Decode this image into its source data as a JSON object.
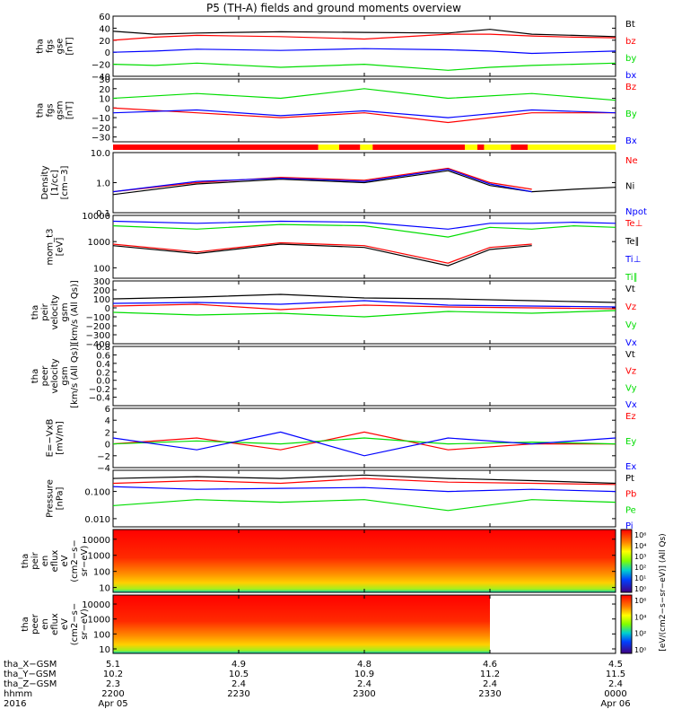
{
  "title": "P5 (TH-A) fields and ground moments overview",
  "colors": {
    "black": "#000000",
    "red": "#ff0000",
    "green": "#00dd00",
    "blue": "#0000ff",
    "yellow": "#ffff00"
  },
  "chart_data": [
    {
      "type": "line",
      "id": "p1",
      "ylabel": [
        "tha",
        "fgs",
        "gse",
        "[nT]"
      ],
      "ylim": [
        -40,
        60
      ],
      "yticks": [
        {
          "v": 60,
          "t": "60"
        },
        {
          "v": 40,
          "t": "40"
        },
        {
          "v": 20,
          "t": "20"
        },
        {
          "v": 0,
          "t": "0"
        },
        {
          "v": -20,
          "t": "−20"
        },
        {
          "v": -40,
          "t": "−40"
        }
      ],
      "series": [
        {
          "name": "Bt",
          "color": "#000000",
          "x": [
            0,
            5,
            10,
            20,
            30,
            40,
            45,
            50,
            55,
            60
          ],
          "y": [
            35,
            30,
            32,
            34,
            33,
            32,
            38,
            30,
            28,
            26
          ]
        },
        {
          "name": "bz",
          "color": "#ff0000",
          "x": [
            0,
            5,
            10,
            20,
            30,
            40,
            45,
            50,
            55,
            60
          ],
          "y": [
            20,
            25,
            28,
            26,
            22,
            30,
            30,
            27,
            25,
            24
          ]
        },
        {
          "name": "by",
          "color": "#00dd00",
          "x": [
            0,
            5,
            10,
            20,
            30,
            40,
            45,
            50,
            55,
            60
          ],
          "y": [
            -20,
            -22,
            -18,
            -25,
            -20,
            -30,
            -25,
            -22,
            -20,
            -18
          ]
        },
        {
          "name": "bx",
          "color": "#0000ff",
          "x": [
            0,
            5,
            10,
            20,
            30,
            40,
            45,
            50,
            55,
            60
          ],
          "y": [
            0,
            2,
            5,
            3,
            6,
            4,
            2,
            -2,
            0,
            2
          ]
        }
      ]
    },
    {
      "type": "line",
      "id": "p2",
      "ylabel": [
        "tha",
        "fgs",
        "gsm",
        "[nT]"
      ],
      "ylim": [
        -35,
        30
      ],
      "yticks": [
        {
          "v": 30,
          "t": "30"
        },
        {
          "v": 20,
          "t": "20"
        },
        {
          "v": 10,
          "t": "10"
        },
        {
          "v": 0,
          "t": "0"
        },
        {
          "v": -10,
          "t": "−10"
        },
        {
          "v": -20,
          "t": "−20"
        },
        {
          "v": -30,
          "t": "−30"
        }
      ],
      "series": [
        {
          "name": "Bz",
          "color": "#ff0000",
          "x": [
            0,
            10,
            20,
            30,
            40,
            50,
            60
          ],
          "y": [
            0,
            -5,
            -10,
            -5,
            -15,
            -5,
            -5
          ]
        },
        {
          "name": "By",
          "color": "#00dd00",
          "x": [
            0,
            10,
            20,
            30,
            40,
            50,
            60
          ],
          "y": [
            10,
            15,
            10,
            20,
            10,
            15,
            8
          ]
        },
        {
          "name": "Bx",
          "color": "#0000ff",
          "x": [
            0,
            10,
            20,
            30,
            40,
            50,
            60
          ],
          "y": [
            -5,
            -2,
            -8,
            -3,
            -10,
            -2,
            -5
          ]
        }
      ]
    },
    {
      "type": "line",
      "id": "p3",
      "ylabel": [
        "Density",
        "[1/cc]",
        "[cm−3]"
      ],
      "ylog": true,
      "ylim": [
        0.1,
        10
      ],
      "yticks": [
        {
          "v": 10,
          "t": "10.0"
        },
        {
          "v": 1,
          "t": "1.0"
        },
        {
          "v": 0.1,
          "t": "0.1"
        }
      ],
      "series": [
        {
          "name": "Ne",
          "color": "#ff0000",
          "x": [
            0,
            10,
            20,
            30,
            40,
            45,
            50
          ],
          "y": [
            0.5,
            1.0,
            1.5,
            1.2,
            3.0,
            1.0,
            0.6
          ]
        },
        {
          "name": "Ni",
          "color": "#000000",
          "x": [
            0,
            10,
            20,
            30,
            40,
            45,
            50,
            55,
            60
          ],
          "y": [
            0.4,
            0.9,
            1.3,
            1.0,
            2.5,
            0.8,
            0.5,
            0.6,
            0.7
          ]
        },
        {
          "name": "Npot",
          "color": "#0000ff",
          "x": [
            0,
            10,
            20,
            30,
            40,
            45,
            50
          ],
          "y": [
            0.5,
            1.1,
            1.4,
            1.1,
            2.8,
            0.9,
            0.5
          ]
        }
      ]
    },
    {
      "type": "line",
      "id": "p4",
      "ylabel": [
        "mom_t3",
        "[eV]"
      ],
      "ylog": true,
      "ylim": [
        40,
        10000
      ],
      "yticks": [
        {
          "v": 10000,
          "t": "10000"
        },
        {
          "v": 1000,
          "t": "1000"
        },
        {
          "v": 100,
          "t": "100"
        }
      ],
      "series": [
        {
          "name": "Te⊥",
          "color": "#ff0000",
          "x": [
            0,
            10,
            20,
            30,
            40,
            45,
            50
          ],
          "y": [
            800,
            400,
            900,
            700,
            150,
            600,
            800
          ]
        },
        {
          "name": "Te∥",
          "color": "#000000",
          "x": [
            0,
            10,
            20,
            30,
            40,
            45,
            50
          ],
          "y": [
            700,
            350,
            800,
            600,
            120,
            500,
            700
          ]
        },
        {
          "name": "Ti⊥",
          "color": "#0000ff",
          "x": [
            0,
            10,
            20,
            30,
            40,
            45,
            50,
            55,
            60
          ],
          "y": [
            6000,
            5000,
            6000,
            5500,
            3000,
            5000,
            5000,
            5500,
            5000
          ]
        },
        {
          "name": "Ti∥",
          "color": "#00dd00",
          "x": [
            0,
            10,
            20,
            30,
            40,
            45,
            50,
            55,
            60
          ],
          "y": [
            4000,
            3000,
            4500,
            4000,
            1500,
            3500,
            3000,
            4000,
            3500
          ]
        }
      ]
    },
    {
      "type": "line",
      "id": "p5",
      "ylabel": [
        "tha",
        "peir",
        "velocity",
        "gsm",
        "[km/s (All Qs)]"
      ],
      "ylim": [
        -400,
        300
      ],
      "yticks": [
        {
          "v": 300,
          "t": "300"
        },
        {
          "v": 200,
          "t": "200"
        },
        {
          "v": 100,
          "t": "100"
        },
        {
          "v": 0,
          "t": "0"
        },
        {
          "v": -100,
          "t": "−100"
        },
        {
          "v": -200,
          "t": "−200"
        },
        {
          "v": -300,
          "t": "−300"
        },
        {
          "v": -400,
          "t": "−400"
        }
      ],
      "series": [
        {
          "name": "Vt",
          "color": "#000000",
          "x": [
            0,
            10,
            20,
            30,
            40,
            50,
            60
          ],
          "y": [
            100,
            120,
            150,
            110,
            100,
            80,
            60
          ]
        },
        {
          "name": "Vz",
          "color": "#ff0000",
          "x": [
            0,
            10,
            20,
            30,
            40,
            50,
            60
          ],
          "y": [
            20,
            40,
            -20,
            30,
            10,
            0,
            -10
          ]
        },
        {
          "name": "Vy",
          "color": "#00dd00",
          "x": [
            0,
            10,
            20,
            30,
            40,
            50,
            60
          ],
          "y": [
            -50,
            -80,
            -60,
            -100,
            -40,
            -60,
            -30
          ]
        },
        {
          "name": "Vx",
          "color": "#0000ff",
          "x": [
            0,
            10,
            20,
            30,
            40,
            50,
            60
          ],
          "y": [
            50,
            60,
            40,
            80,
            30,
            20,
            10
          ]
        }
      ]
    },
    {
      "type": "line",
      "id": "p6",
      "ylabel": [
        "tha",
        "peer",
        "velocity",
        "gsm",
        "[km/s (All Qs)]"
      ],
      "ylim": [
        -0.6,
        0.8
      ],
      "yticks": [
        {
          "v": 0.8,
          "t": "0.8"
        },
        {
          "v": 0.6,
          "t": "0.6"
        },
        {
          "v": 0.4,
          "t": "0.4"
        },
        {
          "v": 0.2,
          "t": "0.2"
        },
        {
          "v": 0,
          "t": "0.0"
        },
        {
          "v": -0.2,
          "t": "−0.2"
        },
        {
          "v": -0.4,
          "t": "−0.4"
        }
      ],
      "series": [
        {
          "name": "Vt",
          "color": "#000000",
          "x": [],
          "y": []
        },
        {
          "name": "Vz",
          "color": "#ff0000",
          "x": [],
          "y": []
        },
        {
          "name": "Vy",
          "color": "#00dd00",
          "x": [],
          "y": []
        },
        {
          "name": "Vx",
          "color": "#0000ff",
          "x": [],
          "y": []
        }
      ]
    },
    {
      "type": "line",
      "id": "p7",
      "ylabel": [
        "E=−VxB",
        "[mV/m]"
      ],
      "ylim": [
        -4,
        6
      ],
      "yticks": [
        {
          "v": 6,
          "t": "6"
        },
        {
          "v": 4,
          "t": "4"
        },
        {
          "v": 2,
          "t": "2"
        },
        {
          "v": 0,
          "t": "0"
        },
        {
          "v": -2,
          "t": "−2"
        },
        {
          "v": -4,
          "t": "−4"
        }
      ],
      "series": [
        {
          "name": "Ez",
          "color": "#ff0000",
          "x": [
            0,
            10,
            20,
            30,
            40,
            50,
            60
          ],
          "y": [
            0,
            1,
            -1,
            2,
            -1,
            0,
            0
          ]
        },
        {
          "name": "Ey",
          "color": "#00dd00",
          "x": [
            0,
            10,
            20,
            30,
            40,
            50,
            60
          ],
          "y": [
            0,
            0.5,
            0,
            1,
            0,
            0.3,
            0
          ]
        },
        {
          "name": "Ex",
          "color": "#0000ff",
          "x": [
            0,
            10,
            20,
            30,
            40,
            50,
            60
          ],
          "y": [
            1,
            -1,
            2,
            -2,
            1,
            0,
            1
          ]
        }
      ]
    },
    {
      "type": "line",
      "id": "p8",
      "ylabel": [
        "Pressure",
        "[nPa]"
      ],
      "ylog": true,
      "ylim": [
        0.005,
        0.6
      ],
      "yticks": [
        {
          "v": 0.1,
          "t": "0.100"
        },
        {
          "v": 0.01,
          "t": "0.010"
        }
      ],
      "series": [
        {
          "name": "Pt",
          "color": "#000000",
          "x": [
            0,
            10,
            20,
            30,
            40,
            50,
            60
          ],
          "y": [
            0.3,
            0.35,
            0.3,
            0.4,
            0.3,
            0.25,
            0.2
          ]
        },
        {
          "name": "Pb",
          "color": "#ff0000",
          "x": [
            0,
            10,
            20,
            30,
            40,
            50,
            60
          ],
          "y": [
            0.2,
            0.25,
            0.2,
            0.3,
            0.22,
            0.2,
            0.18
          ]
        },
        {
          "name": "Pe",
          "color": "#00dd00",
          "x": [
            0,
            10,
            20,
            30,
            40,
            50,
            60
          ],
          "y": [
            0.03,
            0.05,
            0.04,
            0.05,
            0.02,
            0.05,
            0.04
          ]
        },
        {
          "name": "Pi",
          "color": "#0000ff",
          "x": [
            0,
            10,
            20,
            30,
            40,
            50,
            60
          ],
          "y": [
            0.15,
            0.12,
            0.13,
            0.14,
            0.1,
            0.12,
            0.1
          ]
        }
      ]
    },
    {
      "type": "heatmap",
      "id": "s1",
      "ylabel": [
        "tha",
        "peir",
        "en",
        "eflux",
        "eV",
        "(cm2−s−",
        "sr−eV)"
      ],
      "ylog": true,
      "ylim": [
        5,
        40000
      ],
      "yticks": [
        {
          "v": 10000,
          "t": "10000"
        },
        {
          "v": 1000,
          "t": "1000"
        },
        {
          "v": 100,
          "t": "100"
        },
        {
          "v": 10,
          "t": "10"
        }
      ]
    },
    {
      "type": "heatmap",
      "id": "s2",
      "ylabel": [
        "tha",
        "peer",
        "en",
        "eflux",
        "eV",
        "(cm2−s−",
        "sr−eV)"
      ],
      "ylog": true,
      "ylim": [
        5,
        40000
      ],
      "yticks": [
        {
          "v": 10000,
          "t": "10000"
        },
        {
          "v": 1000,
          "t": "1000"
        },
        {
          "v": 100,
          "t": "100"
        },
        {
          "v": 10,
          "t": "10"
        }
      ],
      "data_end_x": 45
    }
  ],
  "colorbar": {
    "label": "[eV/(cm2−s−sr−eV)] (All Qs)",
    "ticks": [
      "10⁶",
      "10⁴",
      "10³",
      "10²",
      "10¹",
      "10⁰"
    ],
    "ticks_lower": [
      "10⁶",
      "10⁴",
      "10²",
      "10⁰"
    ]
  },
  "time_axis": {
    "xlim": [
      0,
      60
    ],
    "row_labels": [
      "tha_X−GSM",
      "tha_Y−GSM",
      "tha_Z−GSM",
      "hhmm",
      "2016"
    ],
    "columns": [
      {
        "x": 0,
        "vals": [
          "5.1",
          "10.2",
          "2.3",
          "2200",
          "Apr 05"
        ]
      },
      {
        "x": 15,
        "vals": [
          "4.9",
          "10.5",
          "2.4",
          "2230",
          ""
        ]
      },
      {
        "x": 30,
        "vals": [
          "4.8",
          "10.9",
          "2.4",
          "2300",
          ""
        ]
      },
      {
        "x": 45,
        "vals": [
          "4.6",
          "11.2",
          "2.4",
          "2330",
          ""
        ]
      },
      {
        "x": 60,
        "vals": [
          "4.5",
          "11.5",
          "2.4",
          "0000",
          "Apr 06"
        ]
      }
    ]
  },
  "mode_bar": [
    {
      "from": 0,
      "to": 24.5,
      "color": "#ff0000"
    },
    {
      "from": 24.5,
      "to": 27,
      "color": "#ffff00"
    },
    {
      "from": 27,
      "to": 29.5,
      "color": "#ff0000"
    },
    {
      "from": 29.5,
      "to": 31,
      "color": "#ffff00"
    },
    {
      "from": 31,
      "to": 42,
      "color": "#ff0000"
    },
    {
      "from": 42,
      "to": 43.5,
      "color": "#ffff00"
    },
    {
      "from": 43.5,
      "to": 44.3,
      "color": "#ff0000"
    },
    {
      "from": 44.3,
      "to": 47.5,
      "color": "#ffff00"
    },
    {
      "from": 47.5,
      "to": 49.5,
      "color": "#ff0000"
    },
    {
      "from": 49.5,
      "to": 60,
      "color": "#ffff00"
    }
  ]
}
